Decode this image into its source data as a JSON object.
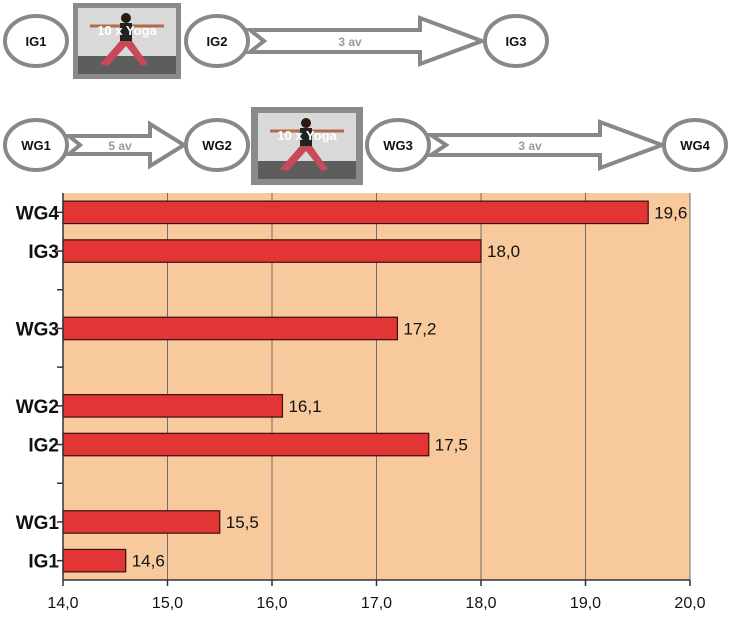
{
  "flow_ig": {
    "nodes": [
      "IG1",
      "IG2",
      "IG3"
    ],
    "yoga_label": "10 x Yoga",
    "arrow_label": "3 av"
  },
  "flow_wg": {
    "nodes": [
      "WG1",
      "WG2",
      "WG3",
      "WG4"
    ],
    "yoga_label": "10 x Yoga",
    "arrow1_label": "5 av",
    "arrow2_label": "3 av"
  },
  "chart_data": {
    "type": "bar",
    "orientation": "horizontal",
    "categories": [
      "WG4",
      "IG3",
      "",
      "WG3",
      "",
      "WG2",
      "IG2",
      "",
      "WG1",
      "IG1"
    ],
    "values": [
      19.6,
      18.0,
      null,
      17.2,
      null,
      16.1,
      17.5,
      null,
      15.5,
      14.6
    ],
    "value_labels": [
      "19,6",
      "18,0",
      "",
      "17,2",
      "",
      "16,1",
      "17,5",
      "",
      "15,5",
      "14,6"
    ],
    "xlim": [
      14.0,
      20.0
    ],
    "xticks": [
      "14,0",
      "15,0",
      "16,0",
      "17,0",
      "18,0",
      "19,0",
      "20,0"
    ],
    "grid": "vertical",
    "colors": {
      "bar": "#e23535",
      "bar_border": "#3a1010",
      "plot_bg": "#f7c99c",
      "grid": "#6e6e6e"
    }
  }
}
